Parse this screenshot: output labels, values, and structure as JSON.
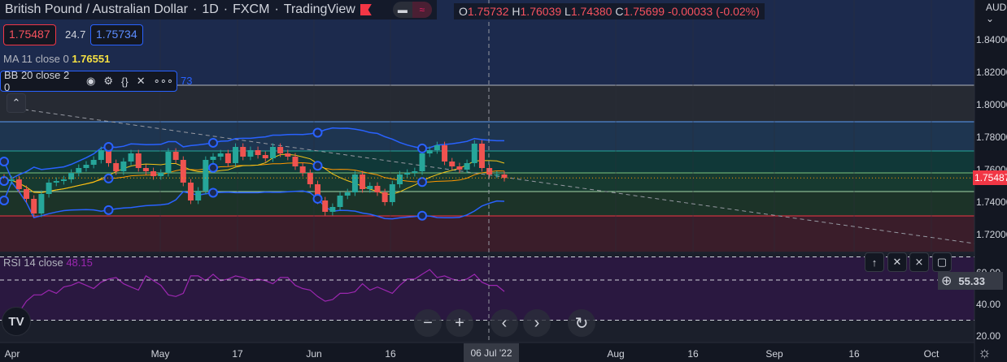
{
  "header": {
    "title": "British Pound / Australian Dollar",
    "interval": "1D",
    "exchange": "FXCM",
    "source": "TradingView",
    "sep": "·"
  },
  "ohlc": {
    "o_label": "O",
    "o": "1.75732",
    "h_label": "H",
    "h": "1.76039",
    "l_label": "L",
    "l": "1.74380",
    "c_label": "C",
    "c": "1.75699",
    "change": "-0.00033 (-0.02%)"
  },
  "quote": {
    "bid": "1.75487",
    "spread": "24.7",
    "ask": "1.75734"
  },
  "indicators": {
    "ma": {
      "label": "MA 11 close 0",
      "value": "1.76551"
    },
    "bb": {
      "label": "BB 20 close 2 0",
      "value_tail": "73"
    },
    "rsi": {
      "label": "RSI 14 close",
      "value": "48.15"
    }
  },
  "currency": "AUD",
  "crosshair": {
    "date": "06 Jul '22",
    "rsi_value": "55.33"
  },
  "colors": {
    "up": "#26a69a",
    "down": "#ef5350",
    "ma": "#f5c518",
    "bb_basis": "#ff9800",
    "bb_band": "#2962ff",
    "rsi": "#9c27b0",
    "last_price": "#f23645"
  },
  "chart_data": {
    "type": "candlestick",
    "price_axis": {
      "ticks": [
        "1.84000",
        "1.82000",
        "1.80000",
        "1.78000",
        "1.76000",
        "1.74000",
        "1.72000"
      ],
      "range": [
        1.713,
        1.852
      ]
    },
    "rsi_axis": {
      "ticks": [
        "60.00",
        "40.00",
        "20.00"
      ],
      "bands": [
        70,
        30
      ]
    },
    "time_axis": [
      "Apr",
      "May",
      "17",
      "Jun",
      "16",
      "Aug",
      "16",
      "Sep",
      "16",
      "Oct"
    ],
    "last_price": "1.75487",
    "levels": [
      1.812,
      1.7895,
      1.7715,
      1.758,
      1.7465,
      1.7315
    ],
    "closes": [
      1.753,
      1.754,
      1.748,
      1.742,
      1.733,
      1.745,
      1.752,
      1.753,
      1.754,
      1.758,
      1.761,
      1.763,
      1.766,
      1.772,
      1.764,
      1.759,
      1.765,
      1.77,
      1.761,
      1.759,
      1.756,
      1.758,
      1.771,
      1.766,
      1.752,
      1.741,
      1.747,
      1.766,
      1.768,
      1.77,
      1.764,
      1.774,
      1.768,
      1.772,
      1.769,
      1.767,
      1.774,
      1.77,
      1.768,
      1.762,
      1.758,
      1.751,
      1.741,
      1.734,
      1.737,
      1.744,
      1.746,
      1.757,
      1.748,
      1.75,
      1.746,
      1.74,
      1.751,
      1.757,
      1.758,
      1.759,
      1.77,
      1.772,
      1.775,
      1.765,
      1.762,
      1.76,
      1.764,
      1.776,
      1.761,
      1.757,
      1.757,
      1.7549
    ],
    "rsi": [
      28,
      30,
      35,
      42,
      46,
      46,
      49,
      47,
      51,
      52,
      54,
      52,
      50,
      54,
      56,
      57,
      53,
      51,
      49,
      58,
      55,
      52,
      46,
      45,
      47,
      58,
      58,
      55,
      59,
      55,
      56,
      58,
      57,
      55,
      56,
      55,
      53,
      57,
      57,
      52,
      50,
      49,
      45,
      42,
      43,
      47,
      47,
      48,
      53,
      49,
      51,
      49,
      47,
      52,
      56,
      56,
      59,
      62,
      57,
      58,
      56,
      55,
      56,
      59,
      54,
      52,
      52,
      48.15
    ]
  },
  "nav": {
    "zoom_out": "−",
    "zoom_in": "+",
    "left": "‹",
    "right": "›",
    "reset": "↻"
  }
}
